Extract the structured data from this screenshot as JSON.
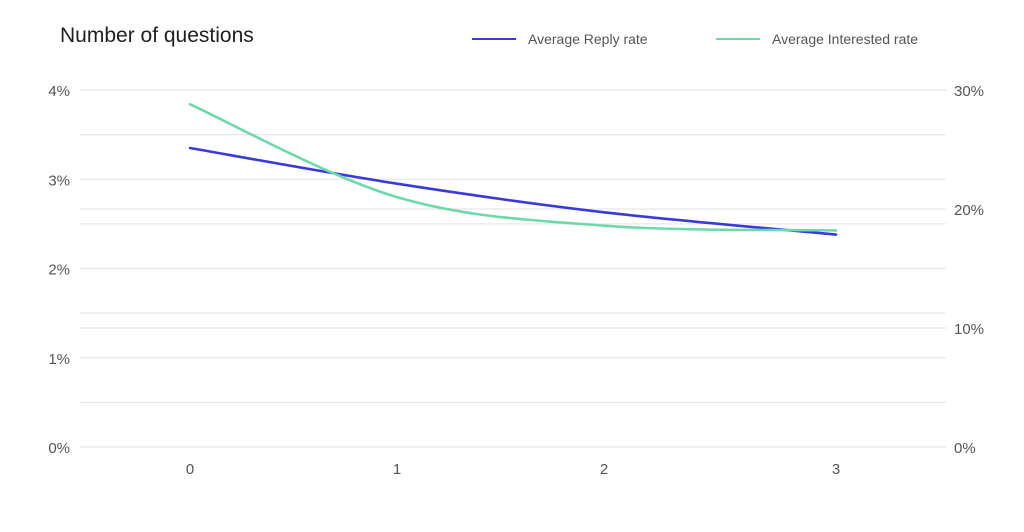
{
  "chart_data": {
    "type": "line",
    "title": "Number of questions",
    "x": [
      0,
      1,
      2,
      3
    ],
    "x_tick_labels": [
      "0",
      "1",
      "2",
      "3"
    ],
    "left_axis": {
      "ticks": [
        "0%",
        "1%",
        "2%",
        "3%",
        "4%"
      ],
      "range": [
        0,
        4
      ]
    },
    "right_axis": {
      "ticks": [
        "0%",
        "10%",
        "20%",
        "30%"
      ],
      "range": [
        0,
        30
      ]
    },
    "series": [
      {
        "name": "Average Reply rate",
        "axis": "left",
        "color": "#3a3ad9",
        "values": [
          3.35,
          2.95,
          2.63,
          2.38
        ]
      },
      {
        "name": "Average Interested rate",
        "axis": "right",
        "color": "#6dd9a8",
        "values": [
          28.8,
          21.0,
          18.6,
          18.2
        ]
      }
    ],
    "legend_position": "top-right",
    "grid": true
  }
}
